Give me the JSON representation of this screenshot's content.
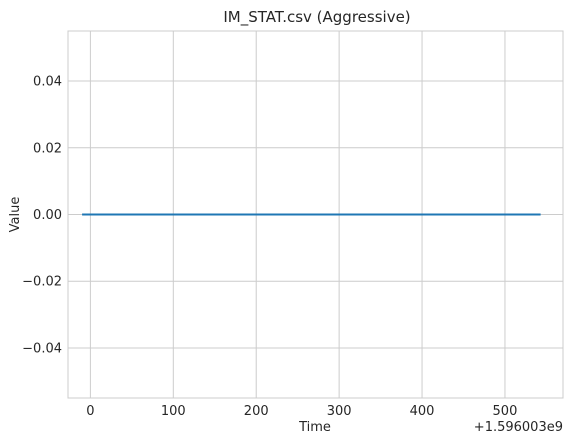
{
  "chart_data": {
    "type": "line",
    "title": "IM_STAT.csv (Aggressive)",
    "xlabel": "Time",
    "ylabel": "Value",
    "x_offset_label": "+1.596003e9",
    "xlim": [
      -27,
      570
    ],
    "ylim": [
      -0.055,
      0.055
    ],
    "x_ticks": [
      0,
      100,
      200,
      300,
      400,
      500
    ],
    "x_tick_labels": [
      "0",
      "100",
      "200",
      "300",
      "400",
      "500"
    ],
    "y_ticks": [
      -0.04,
      -0.02,
      0.0,
      0.02,
      0.04
    ],
    "y_tick_labels": [
      "−0.04",
      "−0.02",
      "0.00",
      "0.02",
      "0.04"
    ],
    "grid": true,
    "series": [
      {
        "color": "#1f77b4",
        "x": [
          -10,
          543
        ],
        "y": [
          0,
          0
        ]
      }
    ]
  }
}
